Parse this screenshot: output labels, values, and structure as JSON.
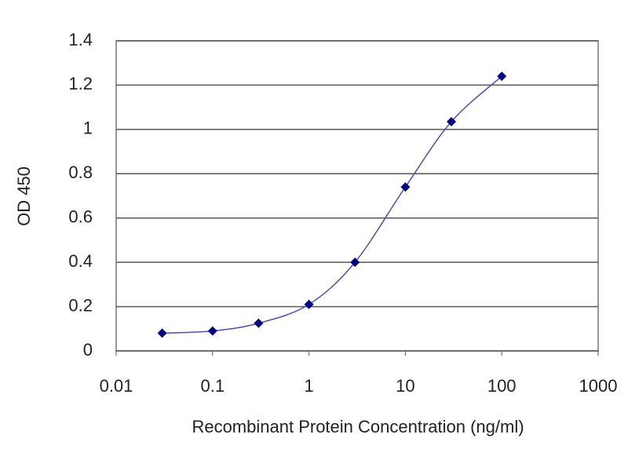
{
  "chart_data": {
    "type": "line",
    "xlabel": "Recombinant Protein Concentration (ng/ml)",
    "ylabel": "OD 450",
    "x": [
      0.03,
      0.1,
      0.3,
      1,
      3,
      10,
      30,
      100
    ],
    "series": [
      {
        "color": "#5050b0",
        "marker_color": "#000080",
        "values": [
          0.08,
          0.09,
          0.125,
          0.21,
          0.4,
          0.74,
          1.035,
          1.24
        ]
      }
    ],
    "xscale": "log",
    "xlim": [
      0.01,
      1000
    ],
    "xticks": [
      0.01,
      0.1,
      1,
      10,
      100,
      1000
    ],
    "ylim": [
      0,
      1.4
    ],
    "yticks": [
      0,
      0.2,
      0.4,
      0.6,
      0.8,
      1,
      1.2,
      1.4
    ],
    "grid": true
  }
}
